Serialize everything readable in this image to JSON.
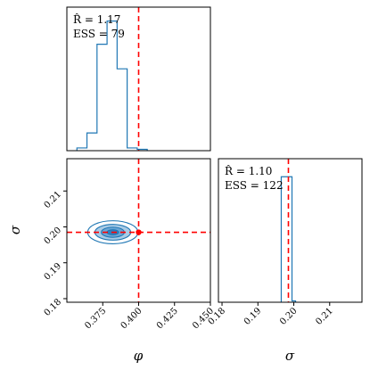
{
  "chart_data": [
    {
      "type": "histogram",
      "panel": "phi-marginal",
      "annotation": [
        "R̂ = 1.17",
        "ESS = 79"
      ],
      "bin_edges": [
        0.357,
        0.364,
        0.371,
        0.378,
        0.385,
        0.392,
        0.399,
        0.406
      ],
      "heights": [
        0.02,
        0.13,
        0.78,
        0.95,
        0.6,
        0.02,
        0.01
      ],
      "xlim": [
        0.35,
        0.45
      ],
      "truth": 0.4
    },
    {
      "type": "contour",
      "panel": "phi-sigma-joint",
      "xlabel": "φ",
      "ylabel": "σ",
      "xlim": [
        0.35,
        0.45
      ],
      "ylim": [
        0.179,
        0.219
      ],
      "xticks": [
        "0.375",
        "0.400",
        "0.425",
        "0.450"
      ],
      "yticks": [
        "0.18",
        "0.19",
        "0.20",
        "0.21"
      ],
      "contours": [
        {
          "cx": 0.382,
          "cy": 0.1985,
          "rx": 0.0175,
          "ry": 0.0032,
          "fill": "#ffffff",
          "stroke": "#1f77b4"
        },
        {
          "cx": 0.382,
          "cy": 0.1985,
          "rx": 0.0125,
          "ry": 0.0022,
          "fill": "#a9cbe6",
          "stroke": "#1f77b4"
        },
        {
          "cx": 0.382,
          "cy": 0.1985,
          "rx": 0.008,
          "ry": 0.0014,
          "fill": "#6ba6d6",
          "stroke": "#1f77b4"
        },
        {
          "cx": 0.382,
          "cy": 0.1985,
          "rx": 0.004,
          "ry": 0.0007,
          "fill": "#2f7fc1",
          "stroke": "#1f77b4"
        }
      ],
      "truth": {
        "x": 0.4,
        "y": 0.1985
      }
    },
    {
      "type": "histogram",
      "panel": "sigma-marginal",
      "xlabel": "σ",
      "annotation": [
        "R̂ = 1.10",
        "ESS = 122"
      ],
      "bin_edges": [
        0.1965,
        0.1975,
        0.1985,
        0.1995,
        0.2005
      ],
      "heights": [
        0.92,
        0.92,
        0.92,
        0.01
      ],
      "xlim": [
        0.179,
        0.219
      ],
      "xticks": [
        "0.18",
        "0.19",
        "0.20",
        "0.21"
      ],
      "truth": 0.1985
    }
  ],
  "colors": {
    "series": "#1f77b4",
    "truth": "#ff0000"
  }
}
